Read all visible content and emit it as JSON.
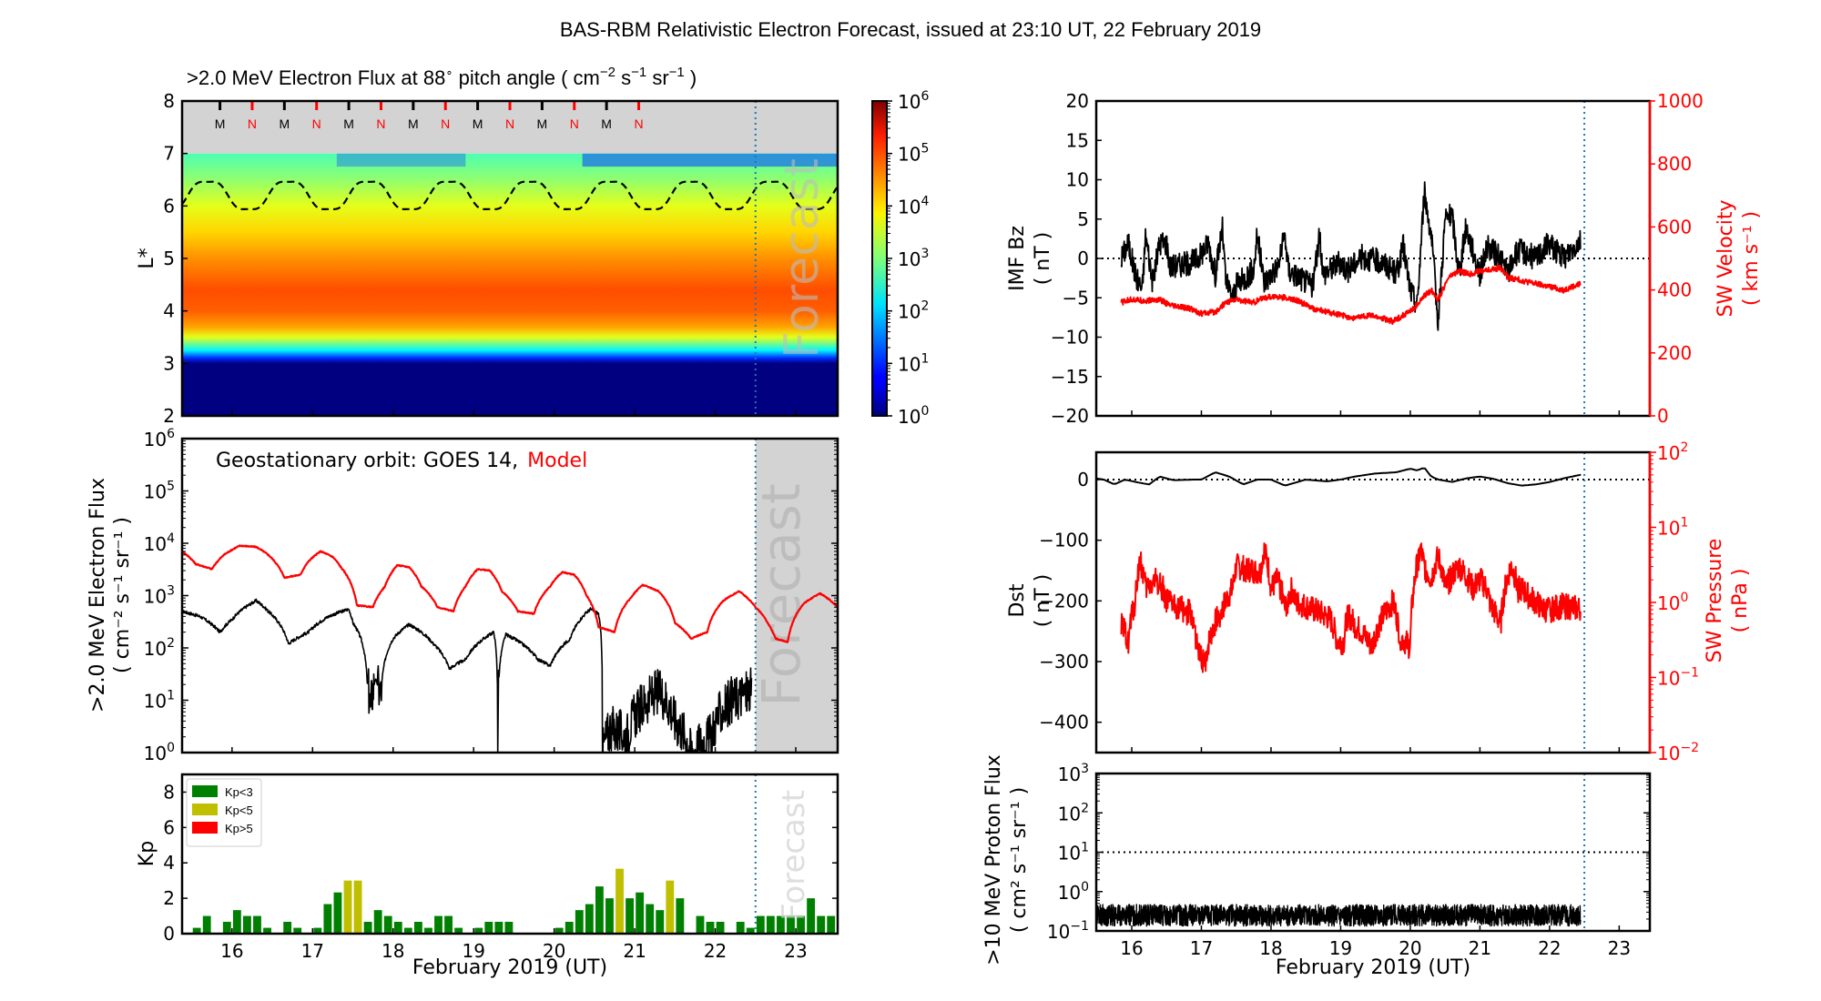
{
  "figure": {
    "suptitle": "BAS-RBM Relativistic Electron Forecast, issued at 23:10 UT, 22 February 2019",
    "forecast_label": "Forecast",
    "forecast_start_day": 22.5
  },
  "chart_data": [
    {
      "id": "lstar_heatmap",
      "type": "heatmap",
      "title": ">2.0 MeV Electron Flux at 88° pitch angle ( cm⁻² s⁻¹ sr⁻¹ )",
      "title_parts": {
        "main": ">2.0 MeV Electron Flux at 88",
        "deg": "∘",
        "mid": " pitch angle ( cm",
        "e1": "−2",
        "s": " s",
        "e2": "−1",
        "sr": " sr",
        "e3": "−1",
        "end": " )"
      },
      "ylabel": "L*",
      "ylim": [
        2,
        8
      ],
      "yticks": [
        "2",
        "3",
        "4",
        "5",
        "6",
        "7",
        "8"
      ],
      "xlim": [
        15.38,
        23.52
      ],
      "colorbar": {
        "scale": "log",
        "range": [
          1,
          1000000
        ],
        "ticks": [
          "10^0",
          "10^1",
          "10^2",
          "10^3",
          "10^4",
          "10^5",
          "10^6"
        ],
        "colormap": "jet"
      },
      "no_data_band": {
        "from": 7,
        "to": 8,
        "color": "#d3d3d3"
      },
      "mlt_markers": {
        "labels": [
          "M",
          "N",
          "M",
          "N",
          "M",
          "N",
          "M",
          "N",
          "M",
          "N",
          "M",
          "N",
          "M",
          "N"
        ],
        "days": [
          15.85,
          16.25,
          16.65,
          17.05,
          17.45,
          17.85,
          18.25,
          18.65,
          19.05,
          19.45,
          19.85,
          20.25,
          20.65,
          21.05
        ],
        "colors": {
          "M": "#000000",
          "N": "#ff0000"
        }
      },
      "flux_profile_log10": [
        {
          "L": 2.0,
          "v": 0.0
        },
        {
          "L": 3.0,
          "v": 0.0
        },
        {
          "L": 3.1,
          "v": 1.0
        },
        {
          "L": 3.25,
          "v": 2.2
        },
        {
          "L": 3.5,
          "v": 3.6
        },
        {
          "L": 3.7,
          "v": 4.3
        },
        {
          "L": 4.0,
          "v": 4.7
        },
        {
          "L": 4.4,
          "v": 4.8
        },
        {
          "L": 5.0,
          "v": 4.4
        },
        {
          "L": 5.5,
          "v": 4.0
        },
        {
          "L": 6.0,
          "v": 3.6
        },
        {
          "L": 6.5,
          "v": 3.1
        },
        {
          "L": 7.0,
          "v": 2.7
        }
      ],
      "magnetopause_dashed": {
        "mean_L": 6.2,
        "amplitude_L": 0.3,
        "period_days": 1.0,
        "first_min_day": 16.2
      }
    },
    {
      "id": "geo_flux",
      "type": "line",
      "annotation": {
        "prefix": "Geostationary orbit:   GOES 14,",
        "model": "Model"
      },
      "ylabel_line1": ">2.0 MeV Electron Flux",
      "ylabel_line2": "( cm⁻² s⁻¹ sr⁻¹ )",
      "yscale": "log",
      "ylim": [
        1,
        1000000
      ],
      "yticks": [
        "10^0",
        "10^1",
        "10^2",
        "10^3",
        "10^4",
        "10^5",
        "10^6"
      ],
      "xlim": [
        15.38,
        23.52
      ],
      "series": [
        {
          "name": "GOES 14",
          "color": "#000000",
          "x": [
            15.38,
            15.6,
            15.85,
            16.0,
            16.3,
            16.45,
            16.7,
            16.95,
            17.2,
            17.45,
            17.5,
            17.6,
            17.68,
            17.72,
            17.78,
            17.85,
            18.0,
            18.2,
            18.5,
            18.7,
            18.9,
            19.2,
            19.25,
            19.3,
            19.4,
            19.6,
            19.8,
            19.95,
            20.2,
            20.45,
            20.55,
            20.6,
            20.7,
            20.9,
            21.1,
            21.3,
            21.5,
            21.7,
            21.95,
            22.2,
            22.45
          ],
          "y": [
            500,
            400,
            200,
            350,
            800,
            500,
            120,
            200,
            400,
            550,
            300,
            150,
            20,
            7,
            25,
            12,
            150,
            280,
            120,
            40,
            60,
            180,
            200,
            1,
            180,
            120,
            60,
            45,
            150,
            550,
            450,
            1,
            3,
            2,
            8,
            15,
            4,
            1,
            2,
            10,
            15
          ]
        },
        {
          "name": "Model",
          "color": "#ff0000",
          "x": [
            15.38,
            15.55,
            15.75,
            15.9,
            16.1,
            16.3,
            16.45,
            16.65,
            16.85,
            16.95,
            17.1,
            17.25,
            17.35,
            17.55,
            17.75,
            17.9,
            18.05,
            18.2,
            18.35,
            18.55,
            18.75,
            18.9,
            19.05,
            19.2,
            19.35,
            19.55,
            19.75,
            19.95,
            20.1,
            20.25,
            20.4,
            20.55,
            20.75,
            20.95,
            21.1,
            21.3,
            21.5,
            21.7,
            21.9,
            22.1,
            22.3,
            22.5,
            22.65,
            22.75,
            22.9,
            23.1,
            23.3,
            23.52
          ],
          "y": [
            7000,
            4000,
            3200,
            6000,
            9000,
            8500,
            6000,
            2200,
            2500,
            4500,
            7000,
            5500,
            3500,
            650,
            600,
            1500,
            3800,
            3500,
            1500,
            600,
            500,
            1500,
            3200,
            3000,
            1200,
            500,
            450,
            1500,
            2800,
            2500,
            1000,
            250,
            200,
            900,
            1600,
            1200,
            300,
            150,
            200,
            800,
            1200,
            600,
            300,
            150,
            130,
            700,
            1100,
            600
          ]
        }
      ]
    },
    {
      "id": "kp",
      "type": "bar",
      "ylabel": "Kp",
      "ylim": [
        0,
        9
      ],
      "yticks": [
        "0",
        "2",
        "4",
        "6",
        "8"
      ],
      "xlim": [
        15.38,
        23.52
      ],
      "xticks": [
        "16",
        "17",
        "18",
        "19",
        "20",
        "21",
        "22",
        "23"
      ],
      "xlabel": "February 2019 (UT)",
      "bin_hours": 3,
      "first_bin_day": 15.5,
      "values": [
        0.33,
        1.0,
        0,
        0.67,
        1.33,
        1.0,
        1.0,
        0.33,
        0,
        0.67,
        0.33,
        0,
        0.33,
        1.67,
        2.33,
        3.0,
        3.0,
        0.67,
        1.33,
        1.0,
        0.67,
        0.33,
        0.67,
        0.33,
        1.0,
        1.0,
        0.33,
        0,
        0.33,
        0.67,
        0.67,
        0.67,
        0,
        0,
        0,
        0,
        0.33,
        0.67,
        1.33,
        1.67,
        2.67,
        2.0,
        3.67,
        2.0,
        2.33,
        1.67,
        1.33,
        3.0,
        2.0,
        0,
        1.0,
        0.67,
        0.67,
        0,
        0.67,
        0.33,
        1.0,
        1.0,
        1.0,
        1.0,
        1.0,
        2.0,
        1.0,
        1.0
      ],
      "legend": {
        "placement": "top-left",
        "entries": [
          {
            "label": "Kp<3",
            "color": "#008000"
          },
          {
            "label": "Kp<5",
            "color": "#bfbf00"
          },
          {
            "label": "Kp>5",
            "color": "#ff0000"
          }
        ]
      }
    },
    {
      "id": "imf_bz_sw_velocity",
      "type": "line",
      "ylabel_left_line1": "IMF Bz",
      "ylabel_left_line2": "( nT )",
      "ylim_left": [
        -20,
        20
      ],
      "yticks_left": [
        "−20",
        "−15",
        "−10",
        "−5",
        "0",
        "5",
        "10",
        "15",
        "20"
      ],
      "ylabel_right_line1": "SW Velocity",
      "ylabel_right_line2": "( km s⁻¹ )",
      "ylim_right": [
        0,
        1000
      ],
      "yticks_right": [
        "0",
        "200",
        "400",
        "600",
        "800",
        "1000"
      ],
      "xlim": [
        15.49,
        23.44
      ],
      "zero_line": 0,
      "series": [
        {
          "name": "IMF Bz",
          "axis": "left",
          "color": "#000000",
          "x": [
            15.85,
            15.95,
            16.05,
            16.15,
            16.2,
            16.3,
            16.4,
            16.5,
            16.55,
            16.85,
            16.95,
            17.1,
            17.2,
            17.3,
            17.35,
            17.45,
            17.5,
            17.75,
            17.8,
            17.9,
            18.0,
            18.1,
            18.2,
            18.25,
            18.6,
            18.7,
            18.75,
            18.9,
            19.0,
            19.1,
            19.3,
            19.6,
            19.8,
            19.9,
            20.0,
            20.1,
            20.2,
            20.3,
            20.4,
            20.5,
            20.6,
            20.7,
            20.8,
            20.9,
            21.0,
            21.1,
            21.3,
            21.4,
            21.5,
            21.6,
            21.8,
            22.0,
            22.2,
            22.45
          ],
          "y": [
            0,
            2,
            -2,
            -4,
            3,
            -3,
            2,
            2,
            -1,
            -0.5,
            0,
            2,
            -2,
            4,
            -3,
            -5,
            -3.5,
            -1.5,
            3,
            -3,
            -2,
            -1,
            3,
            -1.5,
            -3.5,
            3,
            -2,
            -1,
            -0.5,
            -1.5,
            0.2,
            -0.5,
            -2,
            1.5,
            -4,
            -6,
            8.5,
            3,
            -8,
            5,
            5.5,
            -2,
            4,
            1,
            -2,
            1.5,
            0,
            -2,
            0.5,
            1,
            0,
            2,
            0,
            2.5
          ]
        },
        {
          "name": "SW Velocity",
          "axis": "right",
          "color": "#ff0000",
          "x": [
            15.85,
            16.0,
            16.2,
            16.4,
            16.55,
            16.85,
            17.0,
            17.2,
            17.35,
            17.5,
            17.75,
            17.9,
            18.05,
            18.2,
            18.4,
            18.6,
            18.8,
            19.0,
            19.2,
            19.4,
            19.6,
            19.75,
            19.9,
            20.05,
            20.2,
            20.3,
            20.4,
            20.55,
            20.7,
            20.85,
            21.0,
            21.3,
            21.4,
            21.6,
            21.8,
            22.0,
            22.2,
            22.45
          ],
          "y": [
            360,
            370,
            365,
            370,
            350,
            340,
            325,
            330,
            360,
            370,
            360,
            375,
            380,
            375,
            365,
            340,
            330,
            320,
            310,
            320,
            310,
            300,
            320,
            340,
            380,
            400,
            370,
            440,
            460,
            450,
            460,
            470,
            440,
            430,
            420,
            410,
            400,
            420
          ]
        }
      ]
    },
    {
      "id": "dst_sw_pressure",
      "type": "line",
      "ylabel_left_line1": "Dst",
      "ylabel_left_line2": "( nT )",
      "ylim_left": [
        -450,
        45
      ],
      "yticks_left": [
        "−400",
        "−300",
        "−200",
        "−100",
        "0"
      ],
      "ylabel_right_line1": "SW Pressure",
      "ylabel_right_line2": "( nPa )",
      "yscale_right": "log",
      "ylim_right": [
        0.01,
        100
      ],
      "yticks_right": [
        "10^-2",
        "10^-1",
        "10^0",
        "10^1",
        "10^2"
      ],
      "xlim": [
        15.49,
        23.44
      ],
      "zero_line": 0,
      "series": [
        {
          "name": "Dst",
          "axis": "left",
          "color": "#000000",
          "x": [
            15.49,
            15.6,
            15.75,
            15.9,
            16.1,
            16.25,
            16.4,
            16.6,
            16.9,
            17.0,
            17.2,
            17.4,
            17.6,
            17.8,
            18.0,
            18.2,
            18.5,
            18.8,
            19.0,
            19.2,
            19.5,
            19.8,
            20.0,
            20.1,
            20.2,
            20.3,
            20.4,
            20.6,
            20.8,
            21.0,
            21.2,
            21.4,
            21.6,
            21.8,
            22.0,
            22.2,
            22.45
          ],
          "y": [
            2,
            0,
            -8,
            0,
            -5,
            -8,
            5,
            -1,
            0,
            0,
            12,
            5,
            -8,
            0,
            0,
            -10,
            0,
            -3,
            0,
            5,
            10,
            12,
            18,
            15,
            20,
            5,
            0,
            -4,
            2,
            5,
            1,
            -6,
            -10,
            -8,
            -4,
            2,
            8
          ]
        },
        {
          "name": "SW Pressure",
          "axis": "right",
          "color": "#ff0000",
          "x": [
            15.85,
            15.95,
            16.05,
            16.12,
            16.2,
            16.35,
            16.45,
            16.5,
            16.85,
            16.95,
            17.05,
            17.15,
            17.3,
            17.45,
            17.5,
            17.85,
            17.9,
            18.0,
            18.1,
            18.2,
            18.3,
            18.35,
            18.85,
            18.95,
            19.05,
            19.1,
            19.2,
            19.3,
            19.45,
            19.75,
            19.85,
            20.0,
            20.05,
            20.15,
            20.2,
            20.3,
            20.4,
            20.5,
            20.7,
            20.9,
            21.0,
            21.1,
            21.15,
            21.3,
            21.45,
            21.55,
            21.6,
            21.7,
            21.9,
            22.0,
            22.2,
            22.45
          ],
          "y": [
            0.5,
            0.3,
            1.0,
            3.5,
            1.5,
            2.0,
            1.5,
            1.0,
            0.7,
            0.2,
            0.15,
            0.4,
            0.8,
            1.5,
            3.0,
            2.5,
            5.0,
            1.5,
            2.0,
            0.8,
            1.5,
            1.0,
            0.6,
            0.3,
            0.3,
            0.7,
            0.5,
            0.4,
            0.25,
            1.0,
            0.35,
            0.25,
            1.5,
            5.0,
            3.0,
            2.0,
            4.0,
            1.5,
            3.0,
            1.5,
            2.0,
            1.5,
            0.9,
            0.5,
            3.0,
            1.5,
            1.5,
            1.2,
            0.8,
            0.8,
            0.9,
            0.8
          ]
        }
      ]
    },
    {
      "id": "proton_flux",
      "type": "line",
      "ylabel_line1": ">10 MeV Proton Flux",
      "ylabel_line2": "( cm² s⁻¹ sr⁻¹ )",
      "yscale": "log",
      "ylim": [
        0.1,
        1000
      ],
      "yticks": [
        "10^-1",
        "10^0",
        "10^1",
        "10^2",
        "10^3"
      ],
      "xlim": [
        15.49,
        23.44
      ],
      "xticks": [
        "16",
        "17",
        "18",
        "19",
        "20",
        "21",
        "22",
        "23"
      ],
      "xlabel": "February 2019 (UT)",
      "threshold_line": 10,
      "series": [
        {
          "name": ">10 MeV protons",
          "color": "#000000",
          "x_range": [
            15.49,
            22.45
          ],
          "typical_value": 0.25,
          "range": [
            0.12,
            0.6
          ]
        }
      ]
    }
  ]
}
